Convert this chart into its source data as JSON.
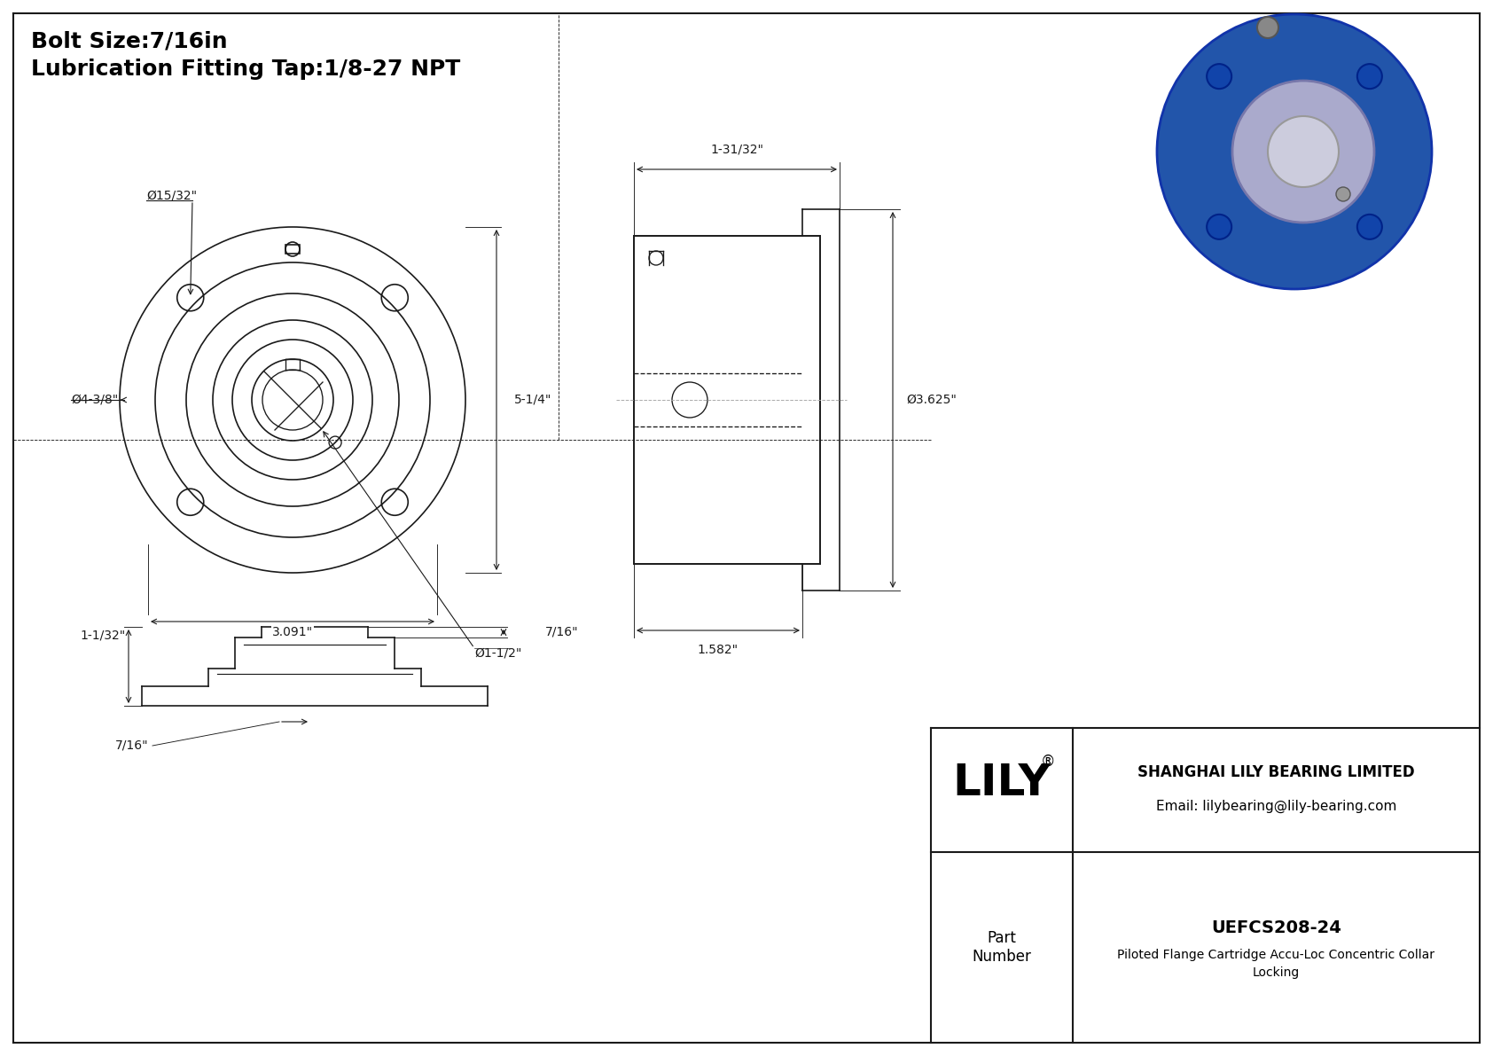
{
  "bg_color": "#ffffff",
  "border_color": "#000000",
  "line_color": "#1a1a1a",
  "dim_color": "#1a1a1a",
  "title_line1": "Bolt Size:7/16in",
  "title_line2": "Lubrication Fitting Tap:1/8-27 NPT",
  "title_fontsize": 18,
  "dim_fontsize": 10,
  "company": "SHANGHAI LILY BEARING LIMITED",
  "email": "Email: lilybearing@lily-bearing.com",
  "part_number": "UEFCS208-24",
  "part_desc1": "Piloted Flange Cartridge Accu-Loc Concentric Collar",
  "part_desc2": "Locking",
  "lily_text": "LILY",
  "part_label": "Part\nNumber",
  "dims": {
    "bolt_hole_dia": "Ø15/32\"",
    "flange_od": "Ø4-3/8\"",
    "height": "5-1/4\"",
    "bolt_circle": "3.091\"",
    "bore": "Ø1-1/2\"",
    "width_side": "1-31/32\"",
    "od_side": "Ø3.625\"",
    "depth_side": "1.582\"",
    "bot_height1": "1-1/32\"",
    "bot_height2": "7/16\"",
    "bot_width": "7/16\""
  }
}
